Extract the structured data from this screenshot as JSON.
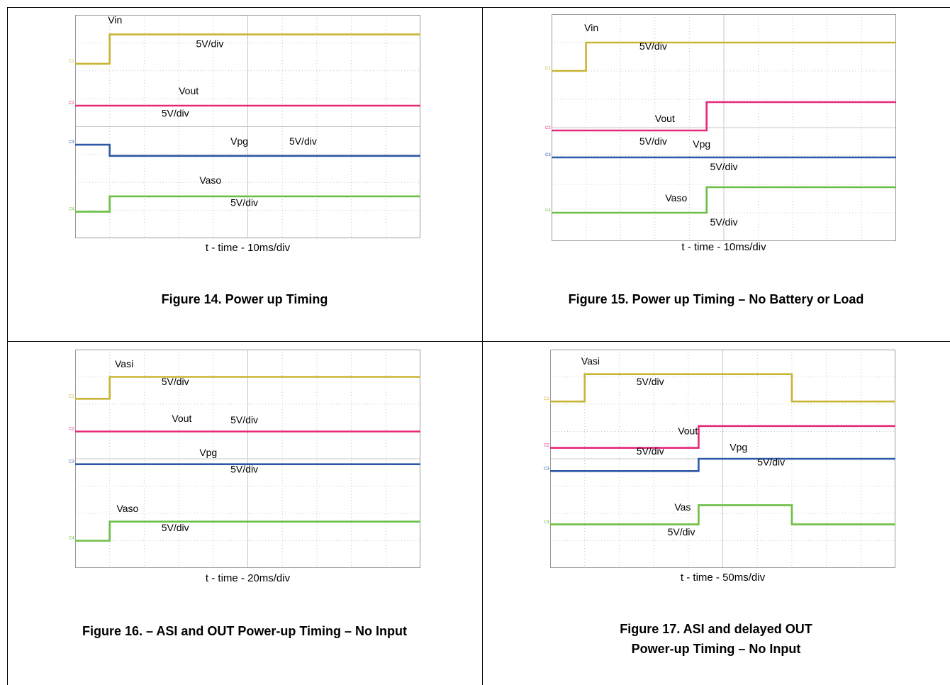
{
  "colors": {
    "c1": "#c8b432",
    "c2": "#e6287a",
    "c3": "#2e58a8",
    "c4": "#6cbf44",
    "grid": "#c8c8c8",
    "frame": "#9a9a9a"
  },
  "channel_markers": [
    "C1",
    "C2",
    "C3",
    "C4"
  ],
  "chart_data": [
    {
      "type": "line",
      "title": "Figure 14. Power up Timing",
      "xlabel": "t - time - 10ms/div",
      "xdivs": 10,
      "ydivs": 8,
      "series": [
        {
          "name": "Vin",
          "scale": "5V/div",
          "color_key": "c1",
          "x": [
            0,
            1.0,
            1.0,
            10
          ],
          "y": [
            6.25,
            6.25,
            7.3,
            7.3
          ]
        },
        {
          "name": "Vout",
          "scale": "5V/div",
          "color_key": "c2",
          "x": [
            0,
            10
          ],
          "y": [
            4.75,
            4.75
          ]
        },
        {
          "name": "Vpg",
          "scale": "5V/div",
          "color_key": "c3",
          "x": [
            0,
            1.0,
            1.0,
            10
          ],
          "y": [
            3.35,
            3.35,
            2.95,
            2.95
          ]
        },
        {
          "name": "Vaso",
          "scale": "5V/div",
          "color_key": "c4",
          "x": [
            0,
            1.0,
            1.0,
            10
          ],
          "y": [
            0.95,
            0.95,
            1.5,
            1.5
          ]
        }
      ],
      "annotations": [
        {
          "text": "Vin",
          "x": 0.95,
          "y": 7.7
        },
        {
          "text": "5V/div",
          "x": 3.5,
          "y": 6.85
        },
        {
          "text": "Vout",
          "x": 3.0,
          "y": 5.15
        },
        {
          "text": "5V/div",
          "x": 2.5,
          "y": 4.35
        },
        {
          "text": "Vpg",
          "x": 4.5,
          "y": 3.35
        },
        {
          "text": "5V/div",
          "x": 6.2,
          "y": 3.35
        },
        {
          "text": "Vaso",
          "x": 3.6,
          "y": 1.95
        },
        {
          "text": "5V/div",
          "x": 4.5,
          "y": 1.15
        }
      ]
    },
    {
      "type": "line",
      "title": "Figure 15.  Power up Timing – No Battery or Load",
      "xlabel": "t - time - 10ms/div",
      "xdivs": 10,
      "ydivs": 8,
      "series": [
        {
          "name": "Vin",
          "scale": "5V/div",
          "color_key": "c1",
          "x": [
            0,
            1.0,
            1.0,
            10
          ],
          "y": [
            6.0,
            6.0,
            7.0,
            7.0
          ]
        },
        {
          "name": "Vout",
          "scale": "5V/div",
          "color_key": "c2",
          "x": [
            0,
            4.5,
            4.5,
            10
          ],
          "y": [
            3.9,
            3.9,
            4.9,
            4.9
          ]
        },
        {
          "name": "Vpg",
          "scale": "5V/div",
          "color_key": "c3",
          "x": [
            0,
            10
          ],
          "y": [
            2.95,
            2.95
          ]
        },
        {
          "name": "Vaso",
          "scale": "5V/div",
          "color_key": "c4",
          "x": [
            0,
            4.5,
            4.5,
            10
          ],
          "y": [
            1.0,
            1.0,
            1.9,
            1.9
          ]
        }
      ],
      "annotations": [
        {
          "text": "Vin",
          "x": 0.95,
          "y": 7.4
        },
        {
          "text": "5V/div",
          "x": 2.55,
          "y": 6.75
        },
        {
          "text": "Vout",
          "x": 3.0,
          "y": 4.2
        },
        {
          "text": "5V/div",
          "x": 2.55,
          "y": 3.4
        },
        {
          "text": "Vpg",
          "x": 4.1,
          "y": 3.3
        },
        {
          "text": "5V/div",
          "x": 4.6,
          "y": 2.5
        },
        {
          "text": "Vaso",
          "x": 3.3,
          "y": 1.4
        },
        {
          "text": "5V/div",
          "x": 4.6,
          "y": 0.55
        }
      ]
    },
    {
      "type": "line",
      "title": "Figure 16.  – ASI and OUT Power-up Timing – No Input",
      "xlabel": "t - time - 20ms/div",
      "xdivs": 10,
      "ydivs": 8,
      "series": [
        {
          "name": "Vasi",
          "scale": "5V/div",
          "color_key": "c1",
          "x": [
            0,
            1.0,
            1.0,
            10
          ],
          "y": [
            6.2,
            6.2,
            7.0,
            7.0
          ]
        },
        {
          "name": "Vout",
          "scale": "5V/div",
          "color_key": "c2",
          "x": [
            0,
            10
          ],
          "y": [
            5.0,
            5.0
          ]
        },
        {
          "name": "Vpg",
          "scale": "5V/div",
          "color_key": "c3",
          "x": [
            0,
            10
          ],
          "y": [
            3.8,
            3.8
          ]
        },
        {
          "name": "Vaso",
          "scale": "5V/div",
          "color_key": "c4",
          "x": [
            0,
            1.0,
            1.0,
            10
          ],
          "y": [
            1.0,
            1.0,
            1.7,
            1.7
          ]
        }
      ],
      "annotations": [
        {
          "text": "Vasi",
          "x": 1.15,
          "y": 7.35
        },
        {
          "text": "5V/div",
          "x": 2.5,
          "y": 6.7
        },
        {
          "text": "Vout",
          "x": 2.8,
          "y": 5.35
        },
        {
          "text": "5V/div",
          "x": 4.5,
          "y": 5.3
        },
        {
          "text": "Vpg",
          "x": 3.6,
          "y": 4.1
        },
        {
          "text": "5V/div",
          "x": 4.5,
          "y": 3.5
        },
        {
          "text": "Vaso",
          "x": 1.2,
          "y": 2.05
        },
        {
          "text": "5V/div",
          "x": 2.5,
          "y": 1.35
        }
      ]
    },
    {
      "type": "line",
      "title": "Figure 17. ASI and delayed OUT Power-up Timing – No Input",
      "title_lines": [
        "Figure 17. ASI and delayed OUT",
        "Power-up Timing – No Input"
      ],
      "xlabel": "t - time - 50ms/div",
      "xdivs": 10,
      "ydivs": 8,
      "series": [
        {
          "name": "Vasi",
          "scale": "5V/div",
          "color_key": "c1",
          "x": [
            0,
            1.0,
            1.0,
            7.0,
            7.0,
            10
          ],
          "y": [
            6.1,
            6.1,
            7.1,
            7.1,
            6.1,
            6.1
          ]
        },
        {
          "name": "Vout",
          "scale": "5V/div",
          "color_key": "c2",
          "x": [
            0,
            4.3,
            4.3,
            10
          ],
          "y": [
            4.4,
            4.4,
            5.2,
            5.2
          ]
        },
        {
          "name": "Vpg",
          "scale": "5V/div",
          "color_key": "c3",
          "x": [
            0,
            4.3,
            4.3,
            10
          ],
          "y": [
            3.55,
            3.55,
            4.0,
            4.0
          ]
        },
        {
          "name": "Vas",
          "scale": "5V/div",
          "color_key": "c4",
          "x": [
            0,
            4.3,
            4.3,
            7.0,
            7.0,
            10
          ],
          "y": [
            1.6,
            1.6,
            2.3,
            2.3,
            1.6,
            1.6
          ]
        }
      ],
      "annotations": [
        {
          "text": "Vasi",
          "x": 0.9,
          "y": 7.45
        },
        {
          "text": "5V/div",
          "x": 2.5,
          "y": 6.7
        },
        {
          "text": "Vout",
          "x": 3.7,
          "y": 4.9
        },
        {
          "text": "5V/div",
          "x": 2.5,
          "y": 4.15
        },
        {
          "text": "Vpg",
          "x": 5.2,
          "y": 4.3
        },
        {
          "text": "5V/div",
          "x": 6.0,
          "y": 3.75
        },
        {
          "text": "Vas",
          "x": 3.6,
          "y": 2.1
        },
        {
          "text": "5V/div",
          "x": 3.4,
          "y": 1.2
        }
      ]
    }
  ]
}
